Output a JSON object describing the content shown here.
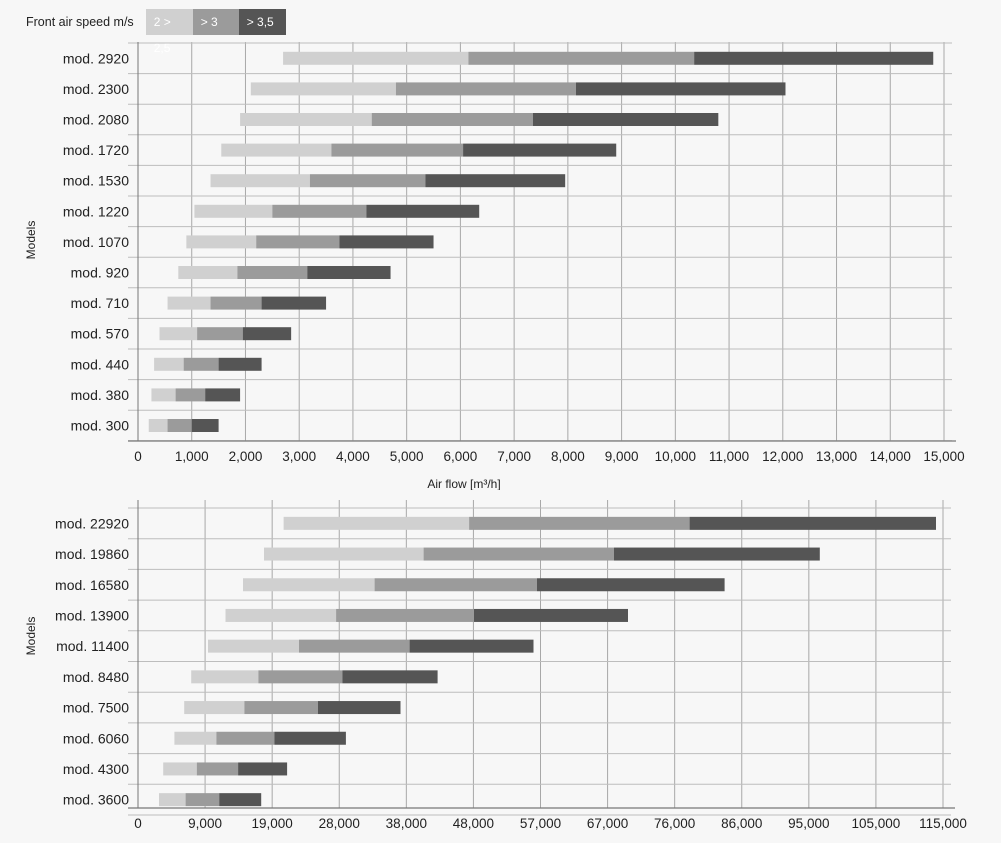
{
  "legend": {
    "title": "Front air speed m/s",
    "items": [
      {
        "label": "2 > 2,5",
        "color": "#d0d0d0"
      },
      {
        "label": "> 3",
        "color": "#9b9b9b"
      },
      {
        "label": "> 3,5",
        "color": "#555555"
      }
    ]
  },
  "chart_data": [
    {
      "type": "bar",
      "orientation": "horizontal-stacked-range",
      "ylabel": "Models",
      "xlabel": "Air flow [m³/h]",
      "xlim": [
        0,
        15000
      ],
      "xticks": [
        "0",
        "1,000",
        "2,000",
        "3,000",
        "4,000",
        "5,000",
        "6,000",
        "7,000",
        "8,000",
        "9,000",
        "10,000",
        "11,000",
        "12,000",
        "13,000",
        "14,000",
        "15,000"
      ],
      "grid": true,
      "series": [
        {
          "name": "2 > 2,5",
          "color": "#d0d0d0"
        },
        {
          "name": "> 3",
          "color": "#9b9b9b"
        },
        {
          "name": "> 3,5",
          "color": "#555555"
        }
      ],
      "categories": [
        "mod. 2920",
        "mod. 2300",
        "mod. 2080",
        "mod. 1720",
        "mod. 1530",
        "mod. 1220",
        "mod. 1070",
        "mod. 920",
        "mod. 710",
        "mod. 570",
        "mod. 440",
        "mod. 380",
        "mod. 300"
      ],
      "ranges": [
        [
          2700,
          6150,
          10350,
          14800
        ],
        [
          2100,
          4800,
          8150,
          12050
        ],
        [
          1900,
          4350,
          7350,
          10800
        ],
        [
          1550,
          3600,
          6050,
          8900
        ],
        [
          1350,
          3200,
          5350,
          7950
        ],
        [
          1050,
          2500,
          4250,
          6350
        ],
        [
          900,
          2200,
          3750,
          5500
        ],
        [
          750,
          1850,
          3150,
          4700
        ],
        [
          550,
          1350,
          2300,
          3500
        ],
        [
          400,
          1100,
          1950,
          2850
        ],
        [
          300,
          850,
          1500,
          2300
        ],
        [
          250,
          700,
          1250,
          1900
        ],
        [
          200,
          550,
          1000,
          1500
        ]
      ]
    },
    {
      "type": "bar",
      "orientation": "horizontal-stacked-range",
      "ylabel": "Models",
      "xlabel": "",
      "xlim": [
        0,
        115000
      ],
      "xticks": [
        "0",
        "9,000",
        "19,000",
        "28,000",
        "38,000",
        "48,000",
        "57,000",
        "67,000",
        "76,000",
        "86,000",
        "95,000",
        "105,000",
        "115,000"
      ],
      "grid": true,
      "series": [
        {
          "name": "2 > 2,5",
          "color": "#d0d0d0"
        },
        {
          "name": "> 3",
          "color": "#9b9b9b"
        },
        {
          "name": "> 3,5",
          "color": "#555555"
        }
      ],
      "categories": [
        "mod. 22920",
        "mod. 19860",
        "mod. 16580",
        "mod. 13900",
        "mod. 11400",
        "mod. 8480",
        "mod. 7500",
        "mod. 6060",
        "mod. 4300",
        "mod. 3600"
      ],
      "ranges": [
        [
          20800,
          47300,
          78800,
          114000
        ],
        [
          18000,
          40800,
          68000,
          97400
        ],
        [
          15000,
          33800,
          57000,
          83800
        ],
        [
          12500,
          28300,
          48000,
          70000
        ],
        [
          10000,
          23000,
          38800,
          56500
        ],
        [
          7600,
          17200,
          29200,
          42800
        ],
        [
          6600,
          15200,
          25700,
          37500
        ],
        [
          5200,
          11200,
          19500,
          29700
        ],
        [
          3600,
          8400,
          14300,
          21300
        ],
        [
          3000,
          6800,
          11600,
          17600
        ]
      ]
    }
  ]
}
